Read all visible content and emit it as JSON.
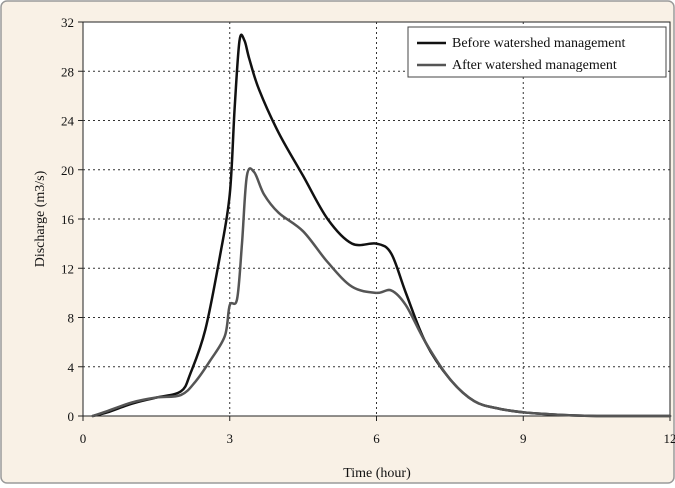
{
  "chart_data": {
    "type": "line",
    "title": "",
    "xlabel": "Time (hour)",
    "ylabel": "Discharge (m3/s)",
    "xlim": [
      0,
      12
    ],
    "ylim": [
      0,
      32
    ],
    "x_ticks": [
      "0",
      "3",
      "6",
      "9",
      "12"
    ],
    "y_ticks": [
      "0",
      "4",
      "8",
      "12",
      "16",
      "20",
      "24",
      "28",
      "32"
    ],
    "grid": true,
    "legend_position": "top-right",
    "background_color": "#f9f1e6",
    "series": [
      {
        "name": "Before watershed management",
        "color": "#111111",
        "x": [
          0.2,
          0.5,
          1.0,
          1.5,
          2.0,
          2.2,
          2.5,
          2.8,
          3.0,
          3.1,
          3.2,
          3.3,
          3.4,
          3.6,
          4.0,
          4.5,
          5.0,
          5.5,
          6.0,
          6.3,
          6.6,
          7.0,
          7.5,
          8.0,
          8.5,
          9.0,
          9.5,
          10.0,
          10.5,
          11.0,
          12.0
        ],
        "y": [
          0.0,
          0.3,
          1.0,
          1.5,
          2.0,
          3.5,
          7.0,
          13.0,
          18.0,
          25.0,
          30.5,
          30.5,
          29.0,
          26.5,
          23.0,
          19.5,
          16.0,
          14.0,
          14.0,
          13.2,
          10.0,
          6.0,
          3.0,
          1.2,
          0.6,
          0.3,
          0.15,
          0.05,
          0.0,
          0.0,
          0.0
        ]
      },
      {
        "name": "After watershed management",
        "color": "#555555",
        "x": [
          0.2,
          0.5,
          1.0,
          1.5,
          2.0,
          2.3,
          2.6,
          2.9,
          3.0,
          3.15,
          3.25,
          3.35,
          3.5,
          3.7,
          4.0,
          4.5,
          5.0,
          5.5,
          6.0,
          6.3,
          6.6,
          7.0,
          7.5,
          8.0,
          8.5,
          9.0,
          9.5,
          10.0,
          10.5,
          11.0,
          12.0
        ],
        "y": [
          0.0,
          0.4,
          1.1,
          1.5,
          1.7,
          2.8,
          4.5,
          6.5,
          9.0,
          9.5,
          14.0,
          19.5,
          19.8,
          18.0,
          16.5,
          15.0,
          12.5,
          10.5,
          10.0,
          10.2,
          9.0,
          6.0,
          3.0,
          1.2,
          0.6,
          0.3,
          0.15,
          0.05,
          0.0,
          0.0,
          0.0
        ]
      }
    ]
  }
}
